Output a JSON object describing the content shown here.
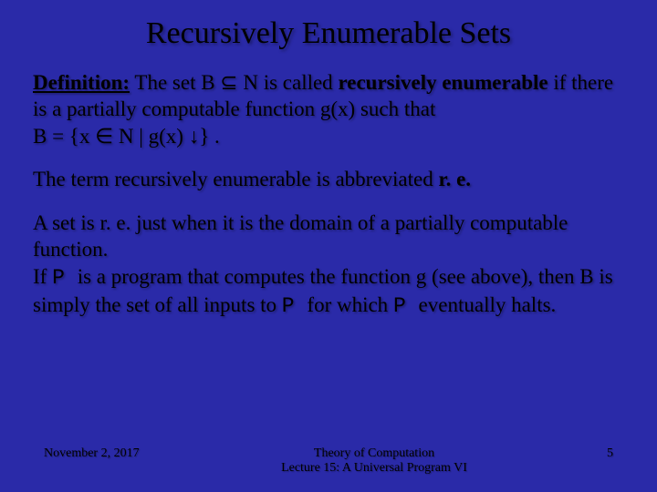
{
  "slide": {
    "background_color": "#2a2aa8",
    "text_color": "#000000",
    "shadow_color": "rgba(0,0,0,0.35)",
    "title_fontsize": 34,
    "body_fontsize": 23,
    "footer_fontsize": 14
  },
  "title": "Recursively Enumerable Sets",
  "def": {
    "label": "Definition:",
    "t1": " The set B ",
    "sub": "⊆",
    "t2": " N is called ",
    "term": "recursively enumerable",
    "t3": " if there is a partially computable function g(x) such that",
    "eq_a": "B = {x ",
    "in": "∈",
    "eq_b": " N | g(x) ",
    "down": "↓",
    "eq_c": "} ."
  },
  "abbrev": {
    "t1": "The term recursively enumerable is abbreviated ",
    "term": "r. e."
  },
  "expl": {
    "t1": "A set is r. e. just when it is the domain of a partially computable function.",
    "t2a": "If ",
    "p1": "P ",
    "t2b": " is a program that computes the function g (see above), then B is simply the set of all inputs to ",
    "p2": "P ",
    "t2c": " for which ",
    "p3": "P ",
    "t2d": " eventually halts."
  },
  "footer": {
    "date": "November 2, 2017",
    "center1": "Theory of Computation",
    "center2": "Lecture 15: A Universal Program VI",
    "page": "5"
  }
}
